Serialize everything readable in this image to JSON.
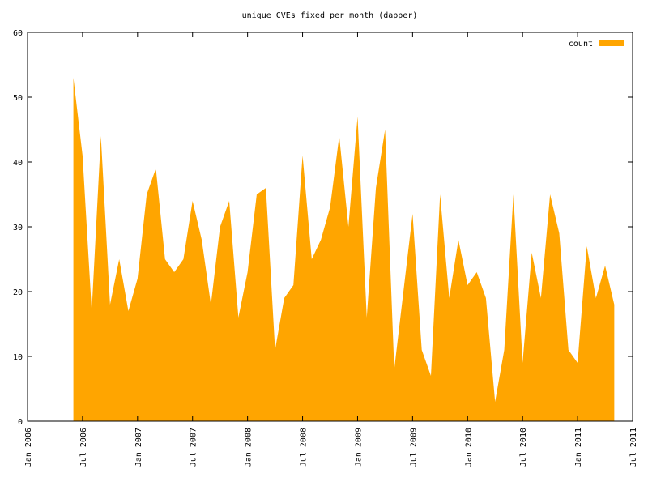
{
  "chart_data": {
    "type": "area",
    "title": "unique CVEs fixed per month (dapper)",
    "x": [
      "2006-06",
      "2006-07",
      "2006-08",
      "2006-09",
      "2006-10",
      "2006-11",
      "2006-12",
      "2007-01",
      "2007-02",
      "2007-03",
      "2007-04",
      "2007-05",
      "2007-06",
      "2007-07",
      "2007-08",
      "2007-09",
      "2007-10",
      "2007-11",
      "2007-12",
      "2008-01",
      "2008-02",
      "2008-03",
      "2008-04",
      "2008-05",
      "2008-06",
      "2008-07",
      "2008-08",
      "2008-09",
      "2008-10",
      "2008-11",
      "2008-12",
      "2009-01",
      "2009-02",
      "2009-03",
      "2009-04",
      "2009-05",
      "2009-06",
      "2009-07",
      "2009-08",
      "2009-09",
      "2009-10",
      "2009-11",
      "2009-12",
      "2010-01",
      "2010-02",
      "2010-03",
      "2010-04",
      "2010-05",
      "2010-06",
      "2010-07",
      "2010-08",
      "2010-09",
      "2010-10",
      "2010-11",
      "2010-12",
      "2011-01",
      "2011-02",
      "2011-03",
      "2011-04",
      "2011-05"
    ],
    "series": [
      {
        "name": "count",
        "color": "#ffa500",
        "values": [
          53,
          41,
          17,
          44,
          18,
          25,
          17,
          22,
          35,
          39,
          25,
          23,
          25,
          34,
          28,
          18,
          30,
          34,
          16,
          23,
          35,
          36,
          11,
          19,
          21,
          41,
          25,
          28,
          33,
          44,
          30,
          47,
          16,
          36,
          45,
          8,
          20,
          32,
          11,
          7,
          35,
          19,
          28,
          21,
          23,
          19,
          3,
          11,
          35,
          9,
          26,
          19,
          35,
          29,
          11,
          9,
          27,
          19,
          24,
          18
        ]
      }
    ],
    "xlim": [
      "2006-01",
      "2011-07"
    ],
    "xticks": [
      {
        "value": "2006-01",
        "label": "Jan 2006"
      },
      {
        "value": "2006-07",
        "label": "Jul 2006"
      },
      {
        "value": "2007-01",
        "label": "Jan 2007"
      },
      {
        "value": "2007-07",
        "label": "Jul 2007"
      },
      {
        "value": "2008-01",
        "label": "Jan 2008"
      },
      {
        "value": "2008-07",
        "label": "Jul 2008"
      },
      {
        "value": "2009-01",
        "label": "Jan 2009"
      },
      {
        "value": "2009-07",
        "label": "Jul 2009"
      },
      {
        "value": "2010-01",
        "label": "Jan 2010"
      },
      {
        "value": "2010-07",
        "label": "Jul 2010"
      },
      {
        "value": "2011-01",
        "label": "Jan 2011"
      },
      {
        "value": "2011-07",
        "label": "Jul 2011"
      }
    ],
    "ylim": [
      0,
      60
    ],
    "yticks": [
      0,
      10,
      20,
      30,
      40,
      50,
      60
    ],
    "legend": "top-right"
  }
}
